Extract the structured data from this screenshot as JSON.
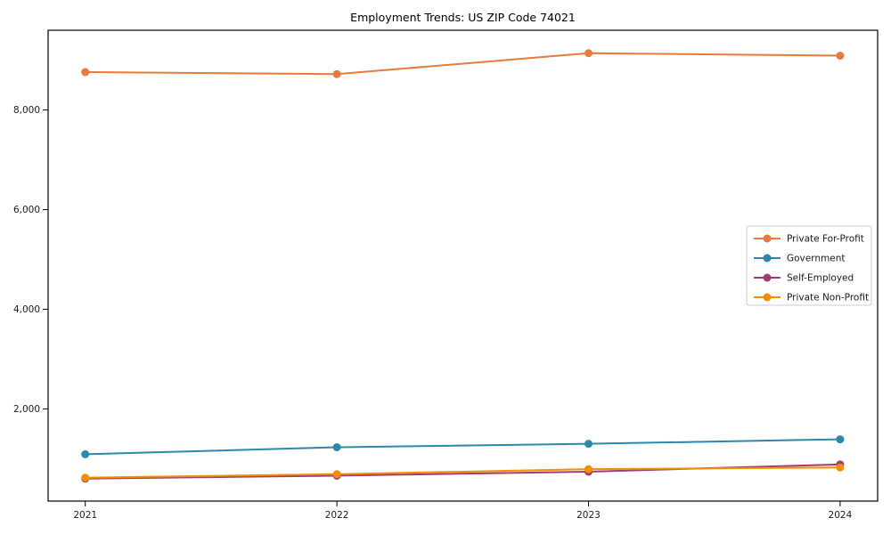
{
  "chart_data": {
    "type": "line",
    "title": "Employment Trends: US ZIP Code 74021",
    "xlabel": "",
    "ylabel": "",
    "x": [
      "2021",
      "2022",
      "2023",
      "2024"
    ],
    "series": [
      {
        "name": "Private For-Profit",
        "color": "#e87a3c",
        "values": [
          8760,
          8720,
          9140,
          9090
        ]
      },
      {
        "name": "Government",
        "color": "#2e86ab",
        "values": [
          1090,
          1230,
          1300,
          1390
        ]
      },
      {
        "name": "Self-Employed",
        "color": "#a23b72",
        "values": [
          600,
          660,
          740,
          885
        ]
      },
      {
        "name": "Private Non-Profit",
        "color": "#f18f01",
        "values": [
          620,
          690,
          790,
          825
        ]
      }
    ],
    "yticks": [
      2000,
      4000,
      6000,
      8000
    ],
    "ytick_labels": [
      "2,000",
      "4,000",
      "6,000",
      "8,000"
    ],
    "ylim": [
      150,
      9600
    ],
    "grid": false,
    "marker": "circle",
    "legend_position": "center-right",
    "frame_color": "#000000",
    "legend_border_color": "#cccccc"
  }
}
